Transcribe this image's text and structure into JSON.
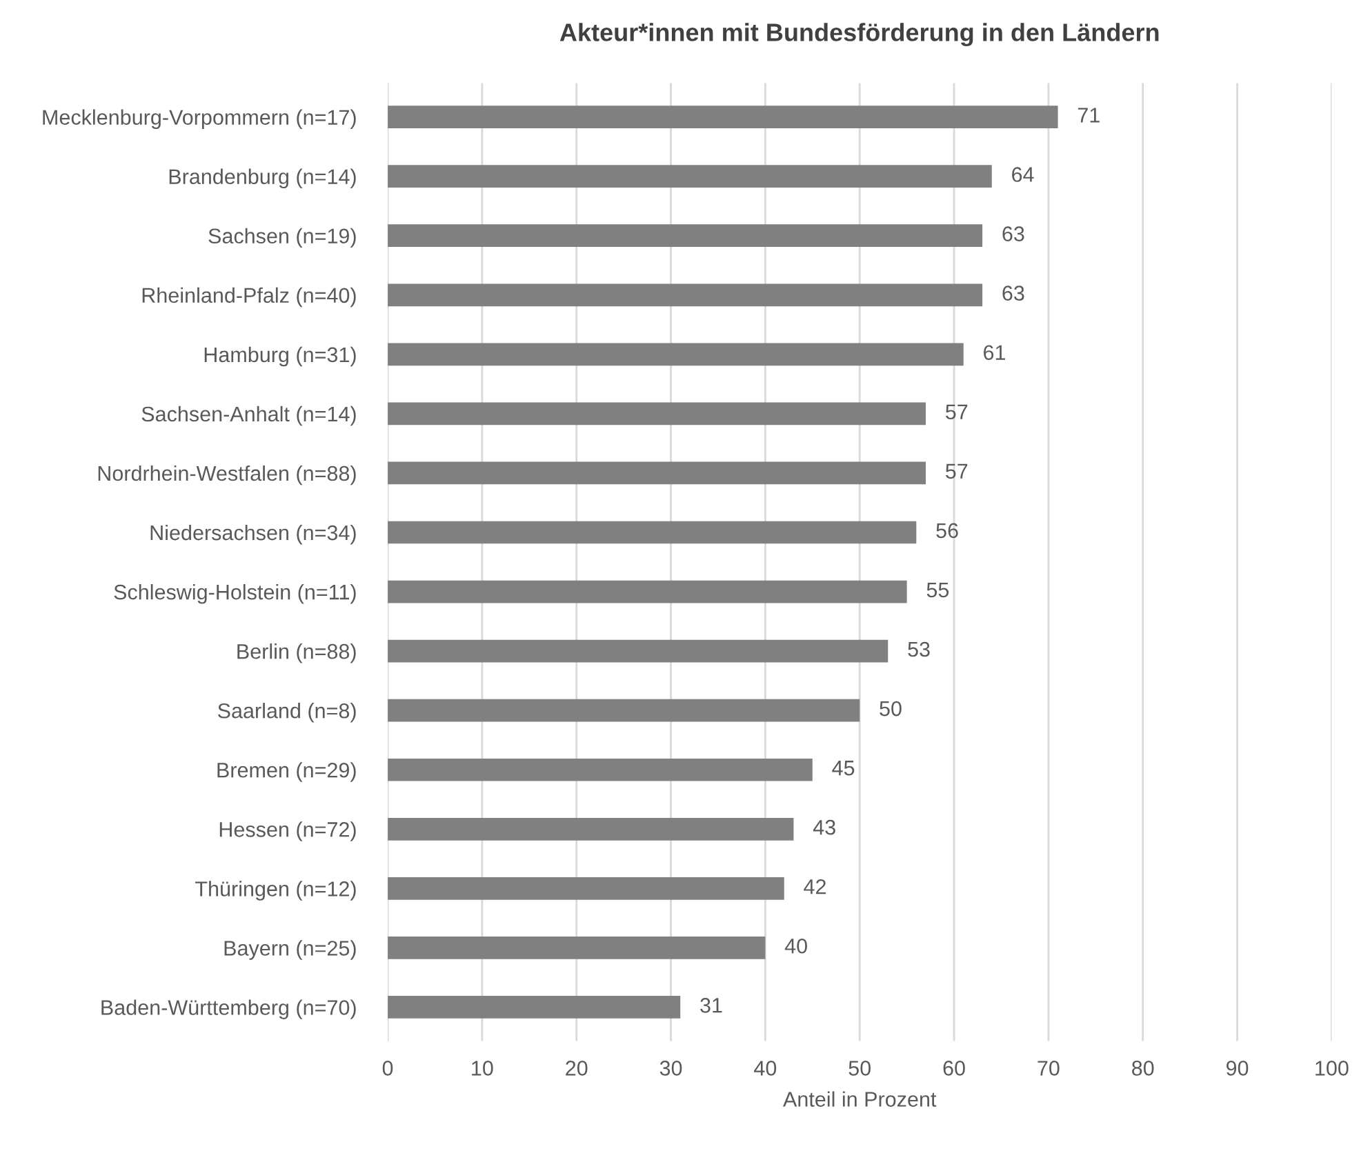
{
  "chart_data": {
    "type": "bar",
    "orientation": "horizontal",
    "title": "Akteur*innen mit Bundesförderung in den Ländern",
    "xlabel": "Anteil in Prozent",
    "categories": [
      "Mecklenburg-Vorpommern (n=17)",
      "Brandenburg (n=14)",
      "Sachsen (n=19)",
      "Rheinland-Pfalz (n=40)",
      "Hamburg (n=31)",
      "Sachsen-Anhalt (n=14)",
      "Nordrhein-Westfalen (n=88)",
      "Niedersachsen (n=34)",
      "Schleswig-Holstein (n=11)",
      "Berlin (n=88)",
      "Saarland (n=8)",
      "Bremen (n=29)",
      "Hessen (n=72)",
      "Thüringen (n=12)",
      "Bayern (n=25)",
      "Baden-Württemberg (n=70)"
    ],
    "values": [
      71,
      64,
      63,
      63,
      61,
      57,
      57,
      56,
      55,
      53,
      50,
      45,
      43,
      42,
      40,
      31
    ],
    "color": "#808080",
    "xlim": [
      0,
      100
    ],
    "xticks": [
      0,
      10,
      20,
      30,
      40,
      50,
      60,
      70,
      80,
      90,
      100
    ],
    "grid": "x",
    "data_labels": true
  }
}
